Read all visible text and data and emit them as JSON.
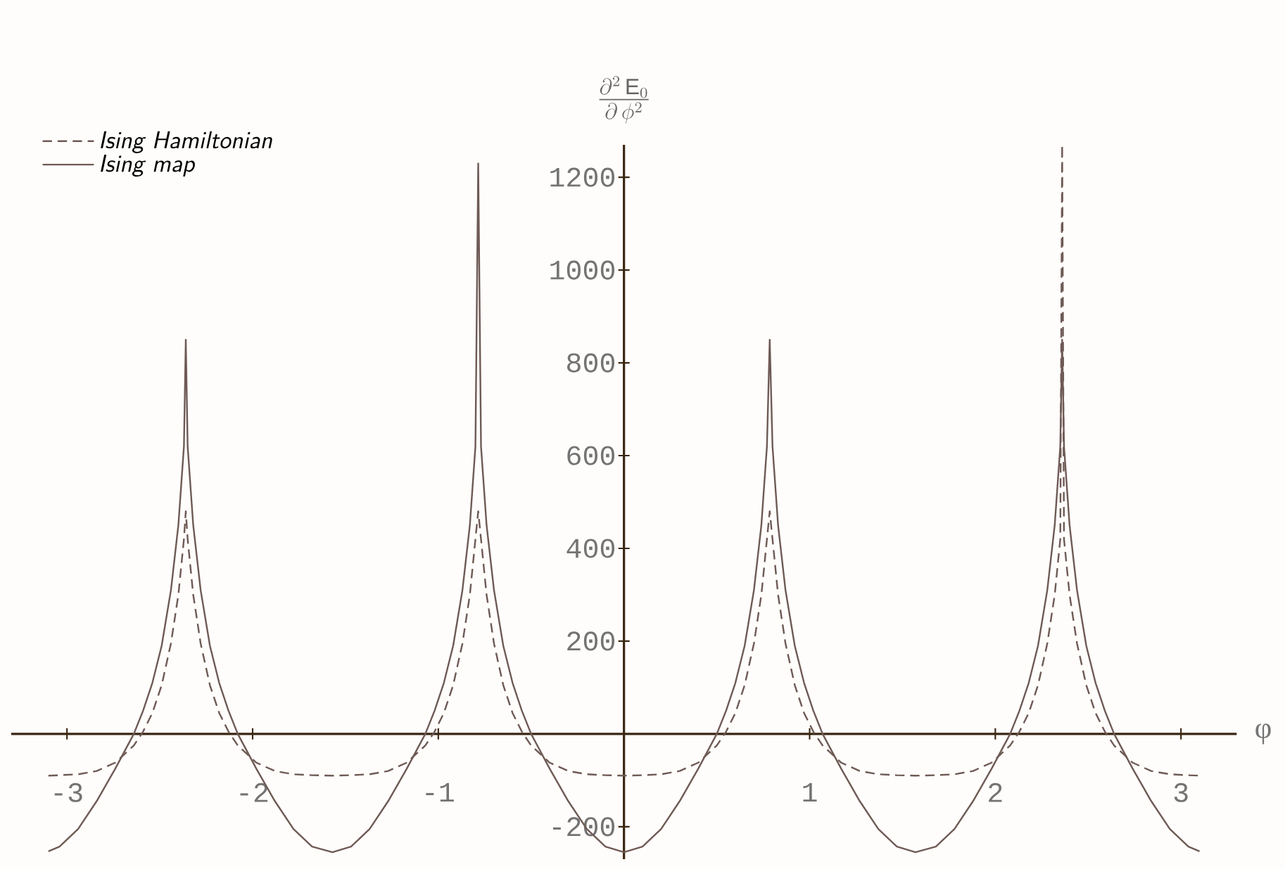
{
  "chart_data": {
    "type": "line",
    "ylabel": "\\frac{\\partial^2\\,\\mathrm{E}_0}{\\partial\\,\\phi^2}",
    "xlabel": "φ",
    "xlim": [
      -3.3,
      3.3
    ],
    "ylim": [
      -270,
      1270
    ],
    "xticks": [
      -3,
      -2,
      -1,
      1,
      2,
      3
    ],
    "yticks": [
      -200,
      200,
      400,
      600,
      800,
      1000,
      1200
    ],
    "legend": "top left",
    "marker": "none",
    "x": [
      -3.1,
      -3.04,
      -2.94,
      -2.84,
      -2.74,
      -2.64,
      -2.59,
      -2.54,
      -2.49,
      -2.44,
      -2.4,
      -2.37,
      -2.36,
      -2.35,
      -2.32,
      -2.28,
      -2.23,
      -2.18,
      -2.13,
      -2.08,
      -1.98,
      -1.88,
      -1.78,
      -1.68,
      -1.57,
      -1.47,
      -1.37,
      -1.27,
      -1.17,
      -1.07,
      -1.02,
      -0.97,
      -0.92,
      -0.87,
      -0.83,
      -0.8,
      -0.785,
      -0.77,
      -0.74,
      -0.7,
      -0.65,
      -0.6,
      -0.55,
      -0.5,
      -0.4,
      -0.3,
      -0.2,
      -0.1,
      0,
      0.1,
      0.2,
      0.3,
      0.4,
      0.5,
      0.55,
      0.6,
      0.65,
      0.7,
      0.74,
      0.77,
      0.785,
      0.8,
      0.83,
      0.87,
      0.92,
      0.97,
      1.02,
      1.07,
      1.17,
      1.27,
      1.37,
      1.47,
      1.57,
      1.68,
      1.78,
      1.88,
      1.98,
      2.08,
      2.13,
      2.18,
      2.23,
      2.28,
      2.32,
      2.35,
      2.36,
      2.37,
      2.4,
      2.44,
      2.49,
      2.54,
      2.59,
      2.64,
      2.74,
      2.84,
      2.94,
      3.04,
      3.1
    ],
    "series": [
      {
        "name": "Ising Hamiltonian",
        "color": "#6e5a55",
        "line_style": "dashed",
        "values": [
          -90,
          -89,
          -87,
          -80,
          -62,
          -25,
          5,
          45,
          105,
          195,
          300,
          420,
          480,
          420,
          300,
          195,
          105,
          45,
          5,
          -25,
          -62,
          -80,
          -87,
          -89,
          -90,
          -89,
          -87,
          -80,
          -62,
          -25,
          5,
          45,
          105,
          195,
          300,
          420,
          480,
          420,
          300,
          195,
          105,
          45,
          5,
          -25,
          -62,
          -80,
          -87,
          -89,
          -90,
          -89,
          -87,
          -80,
          -62,
          -25,
          5,
          45,
          105,
          195,
          300,
          420,
          480,
          420,
          300,
          195,
          105,
          45,
          5,
          -25,
          -62,
          -80,
          -87,
          -89,
          -90,
          -89,
          -87,
          -80,
          -62,
          -25,
          5,
          45,
          105,
          195,
          300,
          420,
          1270,
          420,
          300,
          195,
          105,
          45,
          5,
          -25,
          -62,
          -80,
          -87,
          -89,
          -90
        ]
      },
      {
        "name": "Ising map",
        "color": "#6e5a55",
        "line_style": "solid",
        "values": [
          -253,
          -243,
          -205,
          -145,
          -75,
          0,
          50,
          110,
          190,
          310,
          450,
          620,
          850,
          620,
          450,
          310,
          190,
          110,
          50,
          0,
          -75,
          -145,
          -205,
          -243,
          -255,
          -243,
          -205,
          -145,
          -75,
          0,
          50,
          110,
          190,
          310,
          450,
          620,
          1230,
          620,
          450,
          310,
          190,
          110,
          50,
          0,
          -75,
          -145,
          -205,
          -243,
          -255,
          -243,
          -205,
          -145,
          -75,
          0,
          50,
          110,
          190,
          310,
          450,
          620,
          850,
          620,
          450,
          310,
          190,
          110,
          50,
          0,
          -75,
          -145,
          -205,
          -243,
          -255,
          -243,
          -205,
          -145,
          -75,
          0,
          50,
          110,
          190,
          310,
          450,
          620,
          850,
          620,
          450,
          310,
          190,
          110,
          50,
          0,
          -75,
          -145,
          -205,
          -243,
          -253
        ]
      }
    ]
  }
}
